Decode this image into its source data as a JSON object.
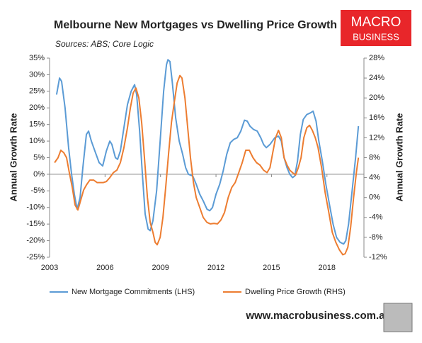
{
  "chart_data": {
    "type": "line",
    "title": "Melbourne New Mortgages vs Dwelling Price Growth",
    "subtitle": "Sources: ABS; Core Logic",
    "ylabel": "Annual Growth Rate",
    "y2label": "Annual Growth Rate",
    "logo": [
      "MACRO",
      "BUSINESS"
    ],
    "footer": "www.macrobusiness.com.au",
    "legend": "bottom",
    "grid": false,
    "xlim": [
      2003,
      2020
    ],
    "xticks": [
      2003,
      2006,
      2009,
      2012,
      2015,
      2018
    ],
    "ylim": [
      -25,
      35
    ],
    "yticks": [
      {
        "value": 35,
        "label": "35%"
      },
      {
        "value": 30,
        "label": "30%"
      },
      {
        "value": 25,
        "label": "25%"
      },
      {
        "value": 20,
        "label": "20%"
      },
      {
        "value": 15,
        "label": "15%"
      },
      {
        "value": 10,
        "label": "10%"
      },
      {
        "value": 5,
        "label": "5%"
      },
      {
        "value": 0,
        "label": "0%"
      },
      {
        "value": -5,
        "label": "-5%"
      },
      {
        "value": -10,
        "label": "-10%"
      },
      {
        "value": -15,
        "label": "-15%"
      },
      {
        "value": -20,
        "label": "-20%"
      },
      {
        "value": -25,
        "label": "-25%"
      }
    ],
    "y2lim": [
      -12,
      28
    ],
    "y2ticks": [
      {
        "value": 28,
        "label": "28%"
      },
      {
        "value": 24,
        "label": "24%"
      },
      {
        "value": 20,
        "label": "20%"
      },
      {
        "value": 16,
        "label": "16%"
      },
      {
        "value": 12,
        "label": "12%"
      },
      {
        "value": 8,
        "label": "8%"
      },
      {
        "value": 4,
        "label": "4%"
      },
      {
        "value": 0,
        "label": "0%"
      },
      {
        "value": -4,
        "label": "-4%"
      },
      {
        "value": -8,
        "label": "-8%"
      },
      {
        "value": -12,
        "label": "-12%"
      }
    ],
    "series": [
      {
        "name": "New Mortgage Commitments (LHS)",
        "color": "#5b9bd5",
        "axis": "y",
        "x": [
          2003.38,
          2003.54,
          2003.65,
          2003.84,
          2004.03,
          2004.19,
          2004.34,
          2004.49,
          2004.65,
          2004.8,
          2004.99,
          2005.11,
          2005.26,
          2005.45,
          2005.68,
          2005.87,
          2006.07,
          2006.26,
          2006.37,
          2006.56,
          2006.68,
          2006.83,
          2007.02,
          2007.21,
          2007.41,
          2007.6,
          2007.71,
          2007.87,
          2008.02,
          2008.17,
          2008.33,
          2008.44,
          2008.59,
          2008.79,
          2008.98,
          2009.17,
          2009.32,
          2009.4,
          2009.51,
          2009.63,
          2009.82,
          2010.01,
          2010.2,
          2010.36,
          2010.51,
          2010.74,
          2010.93,
          2011.12,
          2011.31,
          2011.51,
          2011.66,
          2011.81,
          2012.0,
          2012.2,
          2012.39,
          2012.58,
          2012.77,
          2012.96,
          2013.15,
          2013.34,
          2013.54,
          2013.69,
          2013.84,
          2014.03,
          2014.23,
          2014.42,
          2014.57,
          2014.72,
          2014.92,
          2015.18,
          2015.38,
          2015.53,
          2015.68,
          2015.84,
          2015.99,
          2016.14,
          2016.26,
          2016.41,
          2016.56,
          2016.72,
          2016.91,
          2017.1,
          2017.25,
          2017.41,
          2017.56,
          2017.75,
          2017.94,
          2018.13,
          2018.33,
          2018.52,
          2018.71,
          2018.9,
          2019.02,
          2019.17,
          2019.36,
          2019.55,
          2019.7
        ],
        "values": [
          24,
          29,
          28,
          20,
          8,
          0,
          -6,
          -10.5,
          -7,
          2,
          12,
          13,
          10,
          7,
          3.5,
          2.5,
          7,
          10,
          9,
          5,
          4.5,
          7,
          14,
          21,
          25,
          27,
          24,
          13,
          0,
          -12,
          -16.5,
          -17,
          -14,
          -5,
          10,
          25,
          33,
          34.5,
          34,
          28,
          17,
          10,
          6,
          2,
          0,
          -0.5,
          -3,
          -6,
          -8,
          -10.5,
          -11,
          -10,
          -6,
          -3,
          1,
          6,
          9.5,
          10.5,
          11,
          13,
          16.3,
          16,
          14.5,
          13.5,
          13,
          11,
          9,
          8,
          9,
          11,
          11.5,
          10,
          5,
          2,
          0,
          -1,
          -0.5,
          4,
          12,
          16.5,
          18,
          18.5,
          19,
          16,
          10,
          4,
          -3,
          -9,
          -15,
          -19,
          -20.5,
          -21,
          -20,
          -15,
          -5,
          5,
          14.5
        ]
      },
      {
        "name": "Dwelling Price Growth (RHS)",
        "color": "#ed7d31",
        "axis": "y2",
        "x": [
          2003.27,
          2003.46,
          2003.61,
          2003.77,
          2003.92,
          2004.07,
          2004.23,
          2004.38,
          2004.53,
          2004.69,
          2004.84,
          2004.99,
          2005.18,
          2005.38,
          2005.57,
          2005.76,
          2005.91,
          2006.07,
          2006.26,
          2006.45,
          2006.64,
          2006.83,
          2007.02,
          2007.21,
          2007.37,
          2007.52,
          2007.67,
          2007.83,
          2007.98,
          2008.13,
          2008.29,
          2008.44,
          2008.59,
          2008.71,
          2008.82,
          2008.98,
          2009.13,
          2009.28,
          2009.44,
          2009.59,
          2009.74,
          2009.9,
          2010.05,
          2010.16,
          2010.32,
          2010.47,
          2010.62,
          2010.78,
          2010.93,
          2011.12,
          2011.31,
          2011.51,
          2011.7,
          2011.89,
          2012.08,
          2012.27,
          2012.46,
          2012.66,
          2012.85,
          2013.04,
          2013.23,
          2013.42,
          2013.61,
          2013.8,
          2014.0,
          2014.19,
          2014.38,
          2014.57,
          2014.76,
          2014.92,
          2015.07,
          2015.22,
          2015.38,
          2015.53,
          2015.68,
          2015.84,
          2015.99,
          2016.14,
          2016.3,
          2016.45,
          2016.6,
          2016.75,
          2016.91,
          2017.06,
          2017.21,
          2017.37,
          2017.52,
          2017.71,
          2017.9,
          2018.1,
          2018.29,
          2018.48,
          2018.67,
          2018.86,
          2018.98,
          2019.13,
          2019.28,
          2019.44,
          2019.59,
          2019.7
        ],
        "values": [
          7,
          8,
          9.5,
          9,
          8,
          5,
          2,
          -1.5,
          -2.5,
          -0.5,
          1.5,
          2.5,
          3.5,
          3.5,
          3,
          3,
          3,
          3.2,
          4,
          5,
          5.5,
          7,
          10,
          14,
          18,
          21,
          22,
          20,
          15,
          8,
          0,
          -5,
          -7,
          -9,
          -9.5,
          -8,
          -4,
          2,
          9,
          15,
          19,
          23,
          24.5,
          24,
          20,
          14,
          8,
          3,
          0,
          -2,
          -4,
          -5,
          -5.3,
          -5.2,
          -5.3,
          -4.5,
          -3,
          0,
          2,
          3,
          5,
          7,
          9.5,
          9.5,
          8,
          7,
          6.5,
          5.5,
          5,
          6,
          9,
          12,
          13.5,
          12,
          8,
          6.5,
          5.5,
          5,
          4.5,
          6,
          8,
          12,
          14,
          14.5,
          13.5,
          12,
          10,
          6,
          1,
          -3,
          -7,
          -9,
          -10.5,
          -11.5,
          -11.3,
          -10,
          -6,
          0,
          5,
          8
        ]
      }
    ]
  }
}
